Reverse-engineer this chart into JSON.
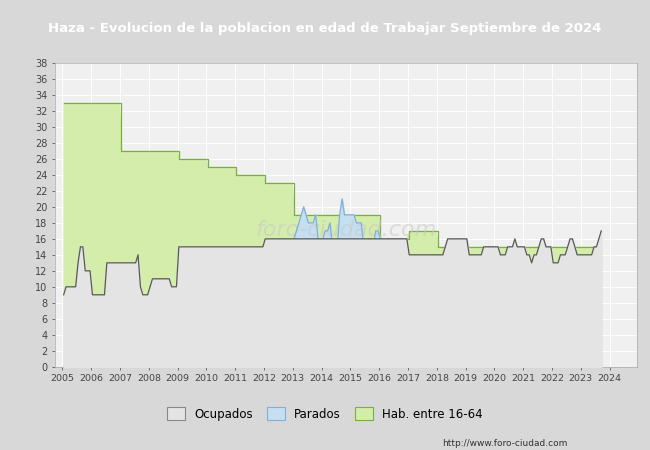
{
  "title": "Haza - Evolucion de la poblacion en edad de Trabajar Septiembre de 2024",
  "title_bg": "#4a6fa5",
  "title_color": "white",
  "yticks": [
    0,
    2,
    4,
    6,
    8,
    10,
    12,
    14,
    16,
    18,
    20,
    22,
    24,
    26,
    28,
    30,
    32,
    34,
    36,
    38
  ],
  "plot_bg": "#f0f0f0",
  "outer_bg": "#d8d8d8",
  "url": "http://www.foro-ciudad.com",
  "legend_labels": [
    "Ocupados",
    "Parados",
    "Hab. entre 16-64"
  ],
  "hab_fill": "#d4edaa",
  "hab_line": "#78b040",
  "parados_fill": "#c5dff0",
  "parados_line": "#80b0d8",
  "ocupados_fill": "#e4e4e4",
  "ocupados_line": "#585858",
  "start_year": 2005,
  "start_month": 1,
  "hab_annual": {
    "2005": 33,
    "2006": 33,
    "2007": 27,
    "2008": 27,
    "2009": 26,
    "2010": 25,
    "2011": 24,
    "2012": 23,
    "2013": 19,
    "2014": 19,
    "2015": 19,
    "2016": 16,
    "2017": 17,
    "2018": 15,
    "2019": 15,
    "2020": 15,
    "2021": 15,
    "2022": 15,
    "2023": 15,
    "2024": 15
  },
  "ocupados": [
    9,
    10,
    10,
    10,
    10,
    10,
    13,
    15,
    15,
    12,
    12,
    12,
    9,
    9,
    9,
    9,
    9,
    9,
    13,
    13,
    13,
    13,
    13,
    13,
    13,
    13,
    13,
    13,
    13,
    13,
    13,
    14,
    10,
    9,
    9,
    9,
    10,
    11,
    11,
    11,
    11,
    11,
    11,
    11,
    11,
    10,
    10,
    10,
    15,
    15,
    15,
    15,
    15,
    15,
    15,
    15,
    15,
    15,
    15,
    15,
    15,
    15,
    15,
    15,
    15,
    15,
    15,
    15,
    15,
    15,
    15,
    15,
    15,
    15,
    15,
    15,
    15,
    15,
    15,
    15,
    15,
    15,
    15,
    15,
    16,
    16,
    16,
    16,
    16,
    16,
    16,
    16,
    16,
    16,
    16,
    16,
    16,
    16,
    16,
    16,
    16,
    16,
    16,
    16,
    16,
    16,
    16,
    16,
    16,
    16,
    16,
    16,
    16,
    16,
    16,
    16,
    16,
    16,
    16,
    16,
    16,
    16,
    16,
    16,
    16,
    16,
    16,
    16,
    16,
    16,
    16,
    16,
    16,
    16,
    16,
    16,
    16,
    16,
    16,
    16,
    16,
    16,
    16,
    16,
    14,
    14,
    14,
    14,
    14,
    14,
    14,
    14,
    14,
    14,
    14,
    14,
    14,
    14,
    14,
    15,
    16,
    16,
    16,
    16,
    16,
    16,
    16,
    16,
    16,
    14,
    14,
    14,
    14,
    14,
    14,
    15,
    15,
    15,
    15,
    15,
    15,
    15,
    14,
    14,
    14,
    15,
    15,
    15,
    16,
    15,
    15,
    15,
    15,
    14,
    14,
    13,
    14,
    14,
    15,
    16,
    16,
    15,
    15,
    15,
    13,
    13,
    13,
    14,
    14,
    14,
    15,
    16,
    16,
    15,
    14,
    14,
    14,
    14,
    14,
    14,
    14,
    15,
    15,
    16,
    17
  ],
  "parados": [
    0,
    0,
    0,
    0,
    0,
    0,
    0,
    0,
    0,
    0,
    0,
    0,
    0,
    0,
    0,
    0,
    0,
    0,
    0,
    0,
    0,
    0,
    0,
    0,
    0,
    0,
    0,
    0,
    0,
    0,
    0,
    0,
    0,
    0,
    0,
    0,
    0,
    0,
    0,
    0,
    0,
    0,
    0,
    0,
    0,
    0,
    0,
    0,
    0,
    0,
    0,
    0,
    0,
    0,
    0,
    0,
    0,
    0,
    0,
    0,
    0,
    0,
    0,
    0,
    0,
    0,
    0,
    0,
    0,
    0,
    0,
    0,
    0,
    0,
    0,
    0,
    0,
    0,
    0,
    0,
    0,
    0,
    0,
    0,
    0,
    0,
    0,
    0,
    0,
    0,
    0,
    0,
    0,
    0,
    0,
    0,
    16,
    17,
    18,
    19,
    20,
    19,
    18,
    18,
    18,
    19,
    16,
    16,
    16,
    17,
    17,
    18,
    15,
    15,
    15,
    19,
    21,
    19,
    19,
    19,
    19,
    19,
    18,
    18,
    18,
    15,
    15,
    16,
    16,
    15,
    17,
    17,
    16,
    16,
    16,
    16,
    16,
    16,
    16,
    16,
    16,
    16,
    16,
    16,
    0,
    0,
    0,
    0,
    0,
    0,
    0,
    0,
    0,
    0,
    0,
    0,
    0,
    0,
    0,
    0,
    0,
    0,
    0,
    0,
    0,
    0,
    0,
    0,
    0,
    0,
    0,
    0,
    0,
    0,
    0,
    0,
    0,
    0,
    0,
    0,
    0,
    0,
    0,
    0,
    0,
    0,
    0,
    0,
    0,
    0,
    0,
    0,
    0,
    0,
    0,
    0,
    0,
    0,
    0,
    0,
    0,
    0,
    0,
    0,
    0,
    0,
    0,
    0,
    0,
    0,
    0,
    0,
    0,
    0,
    0,
    0,
    0,
    0,
    0,
    0,
    0,
    0,
    0,
    0,
    0
  ]
}
